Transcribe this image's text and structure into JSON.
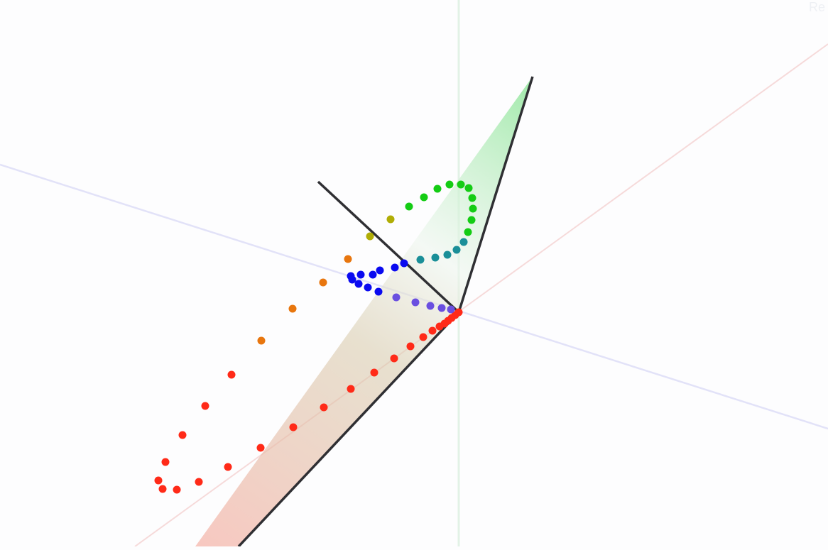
{
  "scene": {
    "corner_label": "Re",
    "background_color": "#fdfdfe",
    "axis_colors": {
      "x": "#f6dada",
      "y": "#e2f2e6",
      "z": "#e2e2f8"
    },
    "vector_color": "#2f2f33",
    "plane_gradient": {
      "top": "#8fe69a",
      "middle": "#f3f6f3",
      "bottom": "#f5b1a6"
    },
    "trajectory_colors": {
      "start": "#ff2a18",
      "orange": "#e8760e",
      "yellow": "#b0ad06",
      "green": "#14cc14",
      "teal": "#1a8f98",
      "blue": "#0a0af0",
      "violet": "#6a4fe0"
    }
  }
}
